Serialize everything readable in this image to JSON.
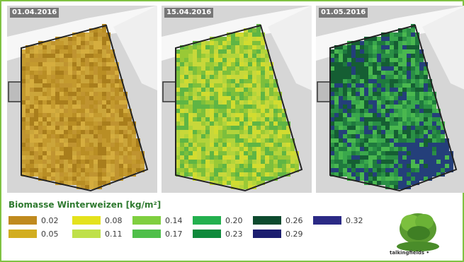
{
  "panels": [
    {
      "date": "01.04.2016",
      "palette": [
        "#c49a2e",
        "#b98e24",
        "#cba53a",
        "#a97e1c",
        "#d5ad3e",
        "#c09430"
      ]
    },
    {
      "date": "15.04.2016",
      "palette": [
        "#b3d43b",
        "#99c936",
        "#d2dc30",
        "#7cbf3c",
        "#c8d83a",
        "#5fb544"
      ]
    },
    {
      "date": "01.05.2016",
      "palette": [
        "#2a8f45",
        "#1f7a3e",
        "#3aa84c",
        "#155e33",
        "#4ab84f",
        "#243f7a"
      ]
    }
  ],
  "legend": {
    "title": "Biomasse Winterweizen [kg/m²]",
    "items": [
      {
        "label": "0.02",
        "color": "#c08a1e"
      },
      {
        "label": "0.05",
        "color": "#d2ad20"
      },
      {
        "label": "0.08",
        "color": "#e4e21c"
      },
      {
        "label": "0.11",
        "color": "#bfe04a"
      },
      {
        "label": "0.14",
        "color": "#7fcf3f"
      },
      {
        "label": "0.17",
        "color": "#4fbf4a"
      },
      {
        "label": "0.20",
        "color": "#23b04e"
      },
      {
        "label": "0.23",
        "color": "#0f8a3c"
      },
      {
        "label": "0.26",
        "color": "#0d4a2e"
      },
      {
        "label": "0.29",
        "color": "#1c1e70"
      },
      {
        "label": "0.32",
        "color": "#2b2a85"
      }
    ]
  },
  "logo": {
    "text": "talkingfields •"
  }
}
